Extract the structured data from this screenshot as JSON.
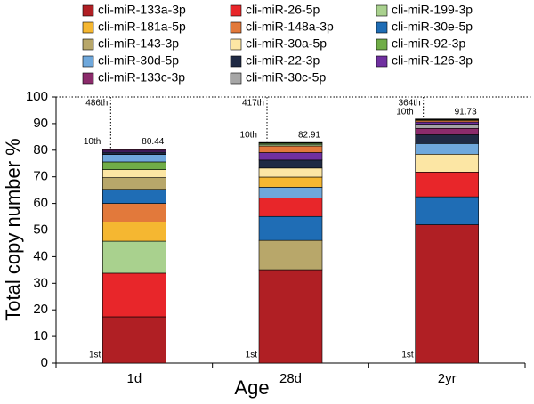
{
  "chart_data": {
    "type": "stacked_bar",
    "categories": [
      "1d",
      "28d",
      "2yr"
    ],
    "xlabel": "Age",
    "ylabel": "Total copy number %",
    "ylim": [
      0,
      100
    ],
    "yticks": [
      0,
      10,
      20,
      30,
      40,
      50,
      60,
      70,
      80,
      90,
      100
    ],
    "totals": [
      80.44,
      82.91,
      91.73
    ],
    "top_ranks": [
      "486th",
      "417th",
      "364th"
    ],
    "tenth_label": "10th",
    "first_label": "1st",
    "series": [
      {
        "name": "cli-miR-133a-3p",
        "color": "#b01f24",
        "values": [
          17.4,
          35.1,
          52.0
        ]
      },
      {
        "name": "cli-miR-26-5p",
        "color": "#e8262a",
        "values": [
          16.4,
          7.0,
          9.3
        ]
      },
      {
        "name": "cli-miR-199-3p",
        "color": "#a9d18e",
        "values": [
          12.0,
          0.6,
          0.03
        ]
      },
      {
        "name": "cli-miR-181a-5p",
        "color": "#f5b731",
        "values": [
          7.2,
          3.8,
          0.3
        ]
      },
      {
        "name": "cli-miR-148a-3p",
        "color": "#e2793b",
        "values": [
          7.0,
          2.5,
          0.5
        ]
      },
      {
        "name": "cli-miR-30e-5p",
        "color": "#1f6db5",
        "values": [
          5.3,
          9.0,
          10.5
        ]
      },
      {
        "name": "cli-miR-143-3p",
        "color": "#b8a76a",
        "values": [
          4.4,
          11.0,
          0.2
        ]
      },
      {
        "name": "cli-miR-30a-5p",
        "color": "#fce6a4",
        "values": [
          3.0,
          3.4,
          6.7
        ]
      },
      {
        "name": "cli-miR-92-3p",
        "color": "#70ad47",
        "values": [
          2.9,
          0.4,
          0.1
        ]
      },
      {
        "name": "cli-miR-30d-5p",
        "color": "#6fa8dc",
        "values": [
          2.8,
          4.0,
          4.0
        ]
      },
      {
        "name": "cli-miR-22-3p",
        "color": "#1f2a44",
        "values": [
          0.9,
          3.0,
          3.3
        ]
      },
      {
        "name": "cli-miR-126-3p",
        "color": "#7030a0",
        "values": [
          0.6,
          2.8,
          0.8
        ]
      },
      {
        "name": "cli-miR-133c-3p",
        "color": "#8b2b6b",
        "values": [
          0.34,
          0.2,
          2.4
        ]
      },
      {
        "name": "cli-miR-30c-5p",
        "color": "#a6a6a6",
        "values": [
          0.2,
          0.11,
          1.6
        ]
      }
    ]
  }
}
